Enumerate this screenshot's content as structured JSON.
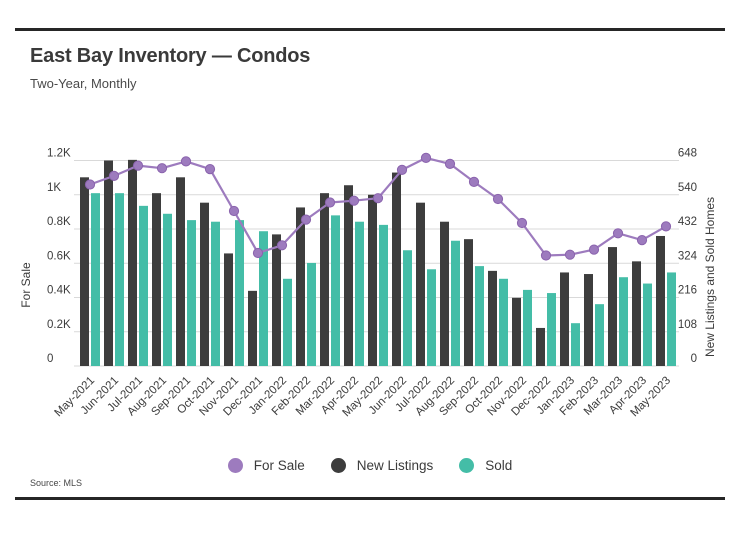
{
  "page": {
    "title": "East Bay Inventory — Condos",
    "subtitle": "Two-Year, Monthly",
    "source": "Source: MLS"
  },
  "style": {
    "grid_color": "#d9d9d9",
    "rule_color": "#262626",
    "text_color": "#3b3b3b",
    "line_dot_stroke": "#8a63ad"
  },
  "legend": [
    {
      "label": "For Sale",
      "color": "#9d7bbe"
    },
    {
      "label": "New Listings",
      "color": "#3d3d3d"
    },
    {
      "label": "Sold",
      "color": "#44bda7"
    }
  ],
  "chart_data": {
    "type": "bar",
    "subtype": "grouped-bars-with-line",
    "title": "East Bay Inventory — Condos",
    "subtitle": "Two-Year, Monthly",
    "grid": true,
    "legend_position": "bottom",
    "categories": [
      "May-2021",
      "Jun-2021",
      "Jul-2021",
      "Aug-2021",
      "Sep-2021",
      "Oct-2021",
      "Nov-2021",
      "Dec-2021",
      "Jan-2022",
      "Feb-2022",
      "Mar-2022",
      "Apr-2022",
      "May-2022",
      "Jun-2022",
      "Jul-2022",
      "Aug-2022",
      "Sep-2022",
      "Oct-2022",
      "Nov-2022",
      "Dec-2022",
      "Jan-2023",
      "Feb-2023",
      "Mar-2023",
      "Apr-2023",
      "May-2023"
    ],
    "series": [
      {
        "name": "For Sale",
        "type": "line",
        "axis": "left",
        "color": "#9d7bbe",
        "values": [
          1060,
          1110,
          1170,
          1155,
          1195,
          1150,
          905,
          660,
          705,
          855,
          955,
          965,
          980,
          1145,
          1215,
          1180,
          1075,
          975,
          835,
          645,
          650,
          680,
          775,
          735,
          815
        ]
      },
      {
        "name": "New Listings",
        "type": "bar",
        "axis": "right",
        "color": "#3d3d3d",
        "values": [
          595,
          648,
          650,
          545,
          595,
          515,
          355,
          237,
          415,
          500,
          545,
          570,
          540,
          610,
          515,
          455,
          400,
          300,
          215,
          120,
          295,
          290,
          375,
          330,
          410
        ]
      },
      {
        "name": "Sold",
        "type": "bar",
        "axis": "right",
        "color": "#44bda7",
        "values": [
          545,
          545,
          505,
          480,
          460,
          455,
          460,
          425,
          275,
          325,
          475,
          455,
          445,
          365,
          305,
          395,
          315,
          275,
          240,
          230,
          135,
          195,
          280,
          260,
          295
        ]
      }
    ],
    "left_axis": {
      "label": "For Sale",
      "min": 0,
      "max": 1200,
      "ticks": [
        "0",
        "0.2K",
        "0.4K",
        "0.6K",
        "0.8K",
        "1K",
        "1.2K"
      ]
    },
    "right_axis": {
      "label": "New Listings and Sold Homes",
      "min": 0,
      "max": 648,
      "ticks": [
        "0",
        "108",
        "216",
        "324",
        "432",
        "540",
        "648"
      ]
    }
  }
}
